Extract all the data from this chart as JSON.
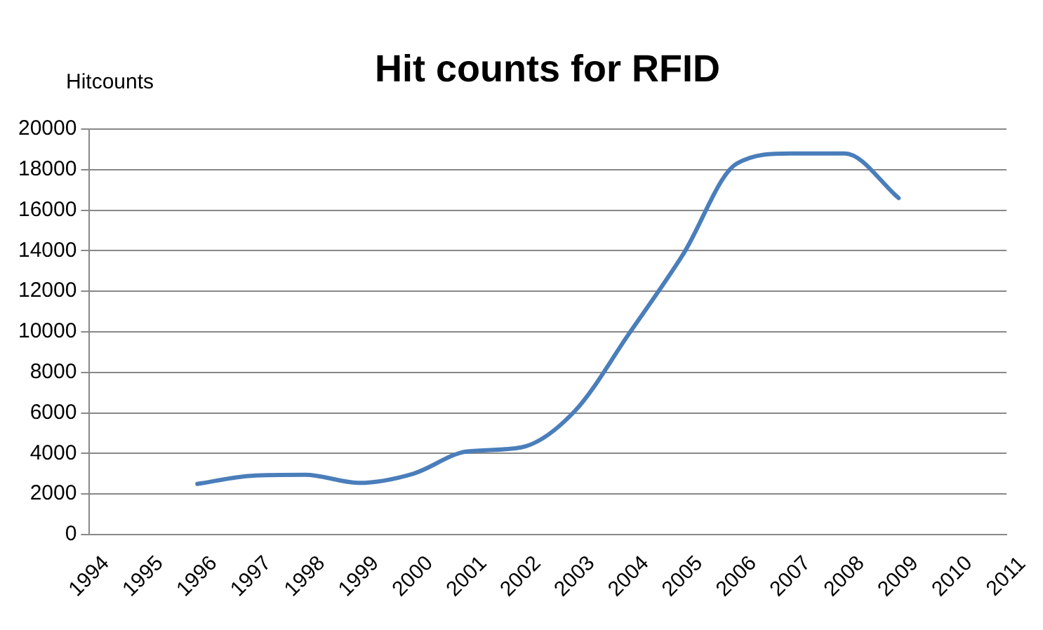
{
  "chart_data": {
    "type": "line",
    "title": "Hit counts for RFID",
    "ylabel": "Hitcounts",
    "categories": [
      "1994",
      "1995",
      "1996",
      "1997",
      "1998",
      "1999",
      "2000",
      "2001",
      "2002",
      "2003",
      "2004",
      "2005",
      "2006",
      "2007",
      "2008",
      "2009",
      "2010",
      "2011"
    ],
    "series": [
      {
        "color": "#4a7ebb",
        "values": [
          null,
          null,
          2500,
          2900,
          2950,
          2550,
          3000,
          4100,
          4300,
          6100,
          9900,
          13800,
          18300,
          18800,
          18800,
          16600,
          null,
          null
        ]
      }
    ],
    "ylim": [
      0,
      20000
    ],
    "yticks": [
      0,
      2000,
      4000,
      6000,
      8000,
      10000,
      12000,
      14000,
      16000,
      18000,
      20000
    ],
    "grid": "y",
    "legend": false,
    "marker": "none",
    "line_style": "solid"
  }
}
